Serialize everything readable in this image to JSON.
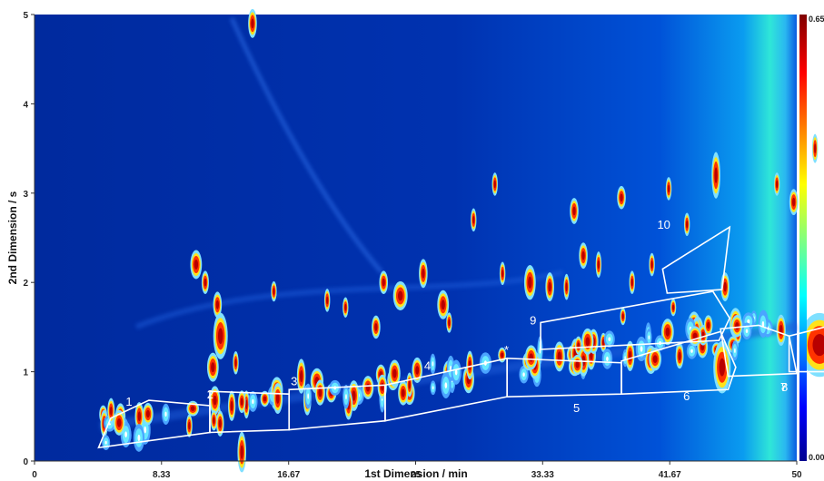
{
  "chart_data": {
    "type": "heatmap",
    "title": "",
    "xlabel": "1st Dimension / min",
    "ylabel": "2nd Dimension / s",
    "xlim": [
      0,
      50
    ],
    "ylim": [
      0,
      5
    ],
    "x_ticks": [
      "0",
      "8.33",
      "16.67",
      "25",
      "33.33",
      "41.67",
      "50"
    ],
    "y_ticks": [
      "0",
      "1",
      "2",
      "3",
      "4",
      "5"
    ],
    "colorbar": {
      "min_label": "0.00",
      "max_label": "0.65",
      "colormap": "jet"
    },
    "regions": [
      {
        "label": "1",
        "points": [
          [
            4.2,
            0.15
          ],
          [
            11.5,
            0.32
          ],
          [
            11.5,
            0.62
          ],
          [
            7.5,
            0.68
          ],
          [
            5.0,
            0.48
          ]
        ]
      },
      {
        "label": "2",
        "points": [
          [
            11.5,
            0.32
          ],
          [
            16.7,
            0.35
          ],
          [
            16.7,
            0.75
          ],
          [
            11.5,
            0.78
          ]
        ]
      },
      {
        "label": "3",
        "points": [
          [
            16.7,
            0.35
          ],
          [
            23.0,
            0.45
          ],
          [
            23.0,
            0.85
          ],
          [
            16.7,
            0.8
          ]
        ]
      },
      {
        "label": "4",
        "points": [
          [
            23.0,
            0.45
          ],
          [
            31.0,
            0.72
          ],
          [
            31.0,
            1.15
          ],
          [
            23.0,
            0.85
          ]
        ]
      },
      {
        "label": "5",
        "points": [
          [
            31.0,
            0.72
          ],
          [
            38.5,
            0.75
          ],
          [
            38.5,
            1.1
          ],
          [
            31.0,
            1.15
          ]
        ]
      },
      {
        "label": "6",
        "points": [
          [
            38.5,
            0.75
          ],
          [
            45.5,
            0.8
          ],
          [
            46.0,
            1.05
          ],
          [
            45.0,
            1.45
          ],
          [
            38.5,
            1.12
          ]
        ]
      },
      {
        "label": "7",
        "points": [
          [
            45.5,
            0.95
          ],
          [
            50.0,
            0.98
          ],
          [
            49.5,
            1.4
          ],
          [
            47.5,
            1.52
          ],
          [
            45.0,
            1.48
          ]
        ]
      },
      {
        "label": "8",
        "points": [
          [
            49.5,
            1.0
          ],
          [
            52.3,
            1.0
          ],
          [
            52.3,
            1.52
          ],
          [
            49.5,
            1.4
          ]
        ]
      },
      {
        "label": "9",
        "points": [
          [
            33.2,
            1.25
          ],
          [
            44.9,
            1.35
          ],
          [
            45.6,
            1.6
          ],
          [
            44.5,
            1.9
          ],
          [
            33.2,
            1.55
          ]
        ]
      },
      {
        "label": "10",
        "points": [
          [
            41.5,
            1.88
          ],
          [
            45.1,
            1.92
          ],
          [
            45.6,
            2.62
          ],
          [
            41.2,
            2.15
          ]
        ]
      }
    ],
    "annotations": [
      "*"
    ],
    "grid": false,
    "legend": "none"
  }
}
